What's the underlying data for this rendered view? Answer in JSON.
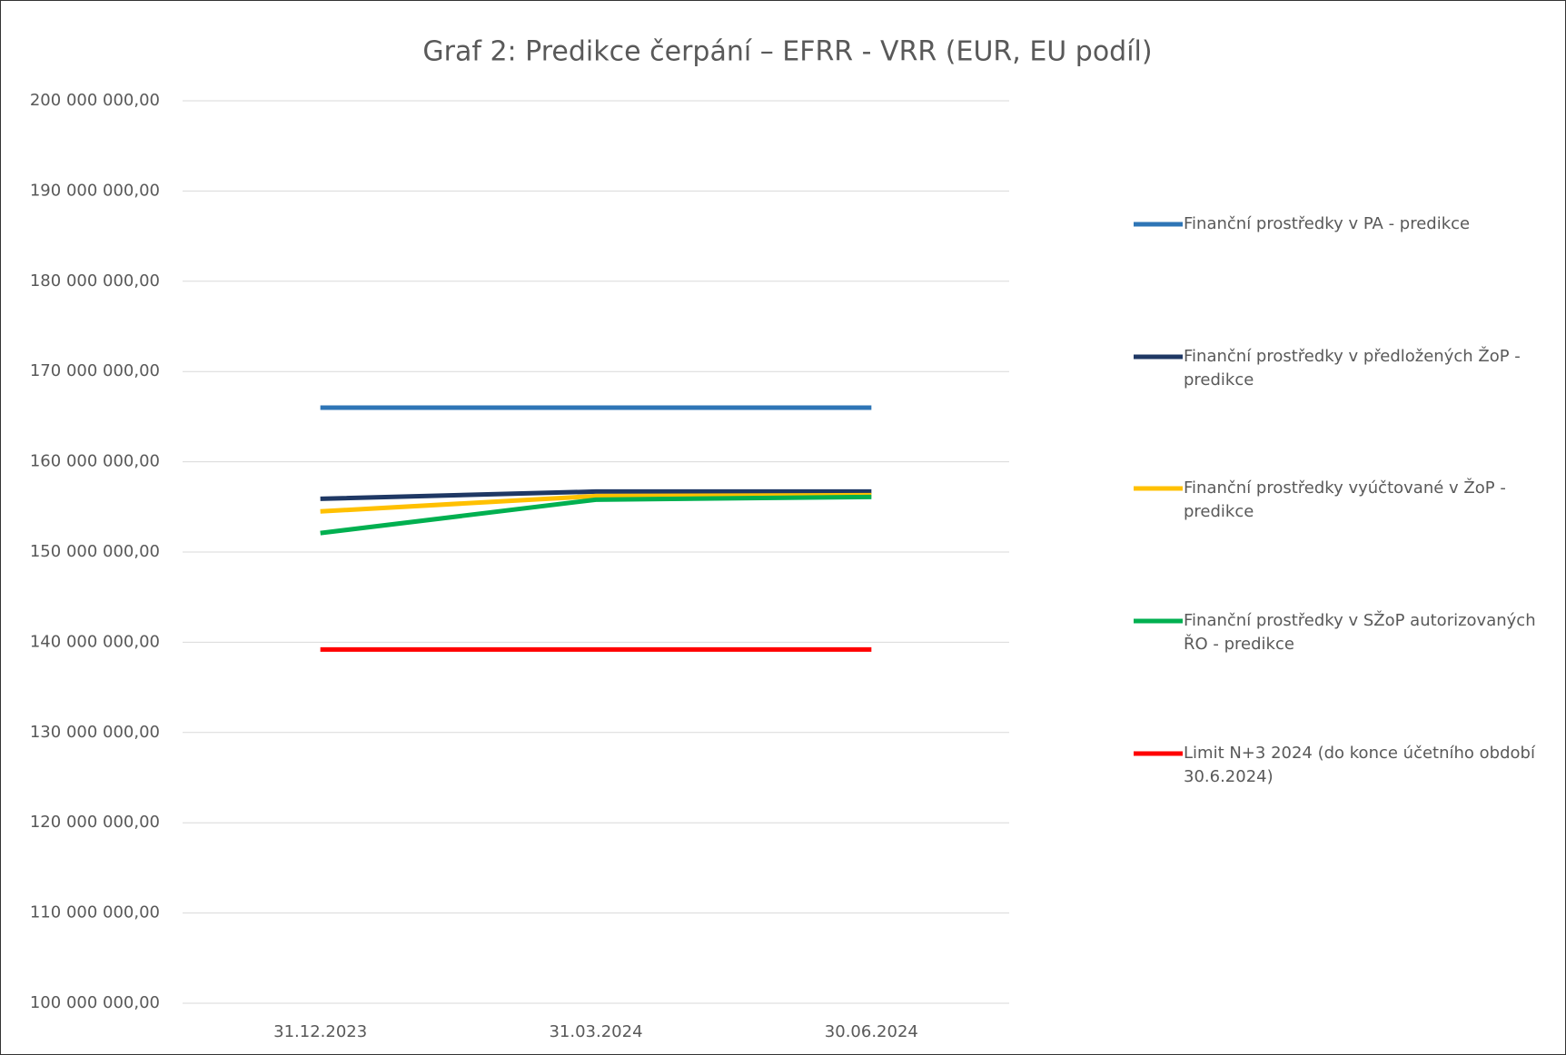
{
  "chart_data": {
    "type": "line",
    "title": "Graf 2: Predikce čerpání – EFRR - VRR (EUR, EU podíl)",
    "categories": [
      "31.12.2023",
      "31.03.2024",
      "30.06.2024"
    ],
    "series": [
      {
        "name": "Finanční prostředky v PA - predikce",
        "color": "#2e75b6",
        "values": [
          166000000,
          166000000,
          166000000
        ]
      },
      {
        "name": "Finanční prostředky v předložených ŽoP - predikce",
        "color": "#1f3864",
        "values": [
          155900000,
          156700000,
          156700000
        ]
      },
      {
        "name": "Finanční prostředky vyúčtované v ŽoP - predikce",
        "color": "#ffc000",
        "values": [
          154500000,
          156200000,
          156300000
        ]
      },
      {
        "name": "Finanční prostředky v SŽoP autorizovaných ŘO - predikce",
        "color": "#00b050",
        "values": [
          152100000,
          155800000,
          156100000
        ]
      },
      {
        "name": "Limit N+3 2024 (do konce účetního období 30.6.2024)",
        "color": "#ff0000",
        "values": [
          139200000,
          139200000,
          139200000
        ]
      }
    ],
    "ylim": [
      100000000,
      200000000
    ],
    "yticks": [
      {
        "value": 100000000,
        "label": "100 000 000,00"
      },
      {
        "value": 110000000,
        "label": "110 000 000,00"
      },
      {
        "value": 120000000,
        "label": "120 000 000,00"
      },
      {
        "value": 130000000,
        "label": "130 000 000,00"
      },
      {
        "value": 140000000,
        "label": "140 000 000,00"
      },
      {
        "value": 150000000,
        "label": "150 000 000,00"
      },
      {
        "value": 160000000,
        "label": "160 000 000,00"
      },
      {
        "value": 170000000,
        "label": "170 000 000,00"
      },
      {
        "value": 180000000,
        "label": "180 000 000,00"
      },
      {
        "value": 190000000,
        "label": "190 000 000,00"
      },
      {
        "value": 200000000,
        "label": "200 000 000,00"
      }
    ],
    "grid": true,
    "legend": "right"
  }
}
